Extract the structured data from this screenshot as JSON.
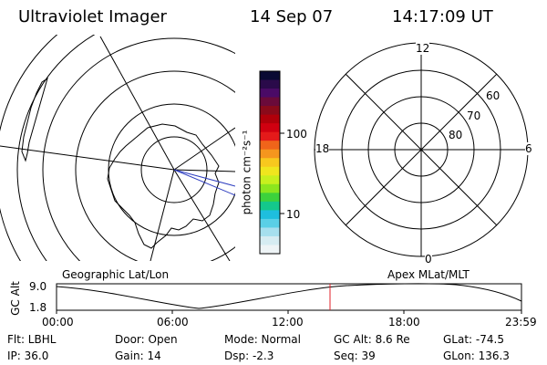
{
  "header": {
    "instrument": "Ultraviolet Imager",
    "date": "14 Sep 07",
    "time": "14:17:09 UT"
  },
  "left_map": {
    "label": "Geographic Lat/Lon"
  },
  "color_scale": {
    "unit_label": "photon cm⁻²s⁻¹",
    "tick_labels": [
      "100",
      "10"
    ],
    "colors": [
      "#0a0a33",
      "#2a0a4a",
      "#4a0a66",
      "#6a0a3a",
      "#8a0a1a",
      "#b0000a",
      "#d00010",
      "#e41a1a",
      "#f0641a",
      "#f5961e",
      "#f8c81e",
      "#f0e61e",
      "#c8f01e",
      "#8ce61e",
      "#3cd23c",
      "#14c88c",
      "#1ebede",
      "#5acfe6",
      "#a6dfee",
      "#d6ecf2",
      "#eef4f6"
    ]
  },
  "right_dial": {
    "label": "Apex MLat/MLT",
    "mlt_labels": {
      "top": "12",
      "left": "18",
      "right": "6",
      "bottom": "0"
    },
    "lat_labels": [
      "60",
      "70",
      "80"
    ]
  },
  "altitude_plot": {
    "ylabel": "GC Alt",
    "y_ticks": [
      "9.0",
      "1.8"
    ],
    "x_ticks": [
      "00:00",
      "06:00",
      "12:00",
      "18:00",
      "23:59"
    ],
    "marker_color": "#e0202a"
  },
  "info": {
    "flt": "Flt: LBHL",
    "door": "Door: Open",
    "mode": "Mode: Normal",
    "gc_alt": "GC Alt: 8.6 Re",
    "glat": "GLat: -74.5",
    "ip": "IP: 36.0",
    "gain": "Gain: 14",
    "dsp": "Dsp:   -2.3",
    "seq": "Seq: 39",
    "glon": "GLon: 136.3"
  }
}
